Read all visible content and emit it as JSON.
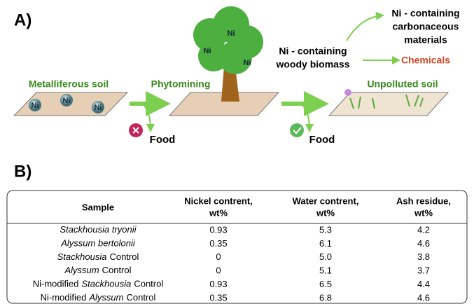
{
  "panel_a": {
    "label": "A)",
    "metalliferous_soil": {
      "title": "Metalliferous soil",
      "ni": [
        "Ni",
        "Ni",
        "Ni"
      ]
    },
    "phytomining": "Phytomining",
    "tree_ni": [
      "Ni",
      "Ni",
      "Ni"
    ],
    "biomass": [
      "Ni - containing",
      "woody biomass"
    ],
    "carbon": [
      "Ni - containing",
      "carbonaceous",
      "materials"
    ],
    "chemicals": "Chemicals",
    "unpolluted_soil": "Unpolluted soil",
    "food": [
      "Food",
      "Food"
    ]
  },
  "panel_b": {
    "label": "B)",
    "table": {
      "header": [
        [
          "Sample"
        ],
        [
          "Nickel contrent,",
          "wt%"
        ],
        [
          "Water contrent,",
          "wt%"
        ],
        [
          "Ash residue,",
          "wt%"
        ]
      ],
      "rows": [
        {
          "sample": [
            {
              "t": "Stackhousia tryonii",
              "i": true
            }
          ],
          "values": [
            "0.93",
            "5.3",
            "4.2"
          ]
        },
        {
          "sample": [
            {
              "t": "Alyssum bertolonii",
              "i": true
            }
          ],
          "values": [
            "0.35",
            "6.1",
            "4.6"
          ]
        },
        {
          "sample": [
            {
              "t": "Stackhousia",
              "i": true
            },
            {
              "t": "Control",
              "i": false
            }
          ],
          "values": [
            "0",
            "5.0",
            "3.8"
          ]
        },
        {
          "sample": [
            {
              "t": "Alyssum",
              "i": true
            },
            {
              "t": "Control",
              "i": false
            }
          ],
          "values": [
            "0",
            "5.1",
            "3.7"
          ]
        },
        {
          "sample": [
            {
              "t": "Ni-modified",
              "i": false
            },
            {
              "t": "Stackhousia",
              "i": true
            },
            {
              "t": "Control",
              "i": false
            }
          ],
          "values": [
            "0.93",
            "6.5",
            "4.4"
          ]
        },
        {
          "sample": [
            {
              "t": "Ni-modified",
              "i": false
            },
            {
              "t": "Alyssum",
              "i": true
            },
            {
              "t": "Control",
              "i": false
            }
          ],
          "values": [
            "0.35",
            "6.8",
            "4.6"
          ]
        }
      ]
    }
  }
}
